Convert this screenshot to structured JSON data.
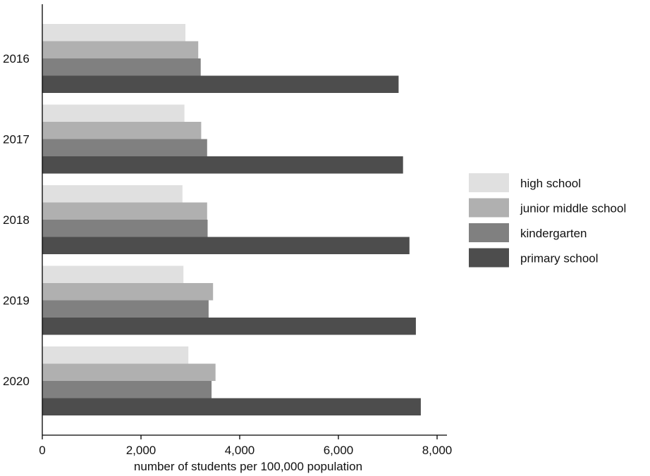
{
  "chart_data": {
    "type": "bar",
    "orientation": "horizontal",
    "categories": [
      "2016",
      "2017",
      "2018",
      "2019",
      "2020"
    ],
    "series": [
      {
        "name": "high school",
        "color": "#e0e0e0",
        "values": [
          2900,
          2880,
          2840,
          2860,
          2960
        ]
      },
      {
        "name": "junior middle school",
        "color": "#b0b0b0",
        "values": [
          3160,
          3220,
          3340,
          3460,
          3510
        ]
      },
      {
        "name": "kindergarten",
        "color": "#808080",
        "values": [
          3210,
          3340,
          3350,
          3370,
          3430
        ]
      },
      {
        "name": "primary school",
        "color": "#4d4d4d",
        "values": [
          7220,
          7310,
          7440,
          7570,
          7670
        ]
      }
    ],
    "title": "",
    "xlabel": "number of students per 100,000 population",
    "ylabel": "",
    "xlim": [
      0,
      8200
    ],
    "xticks": [
      0,
      2000,
      4000,
      6000,
      8000
    ],
    "xtick_labels": [
      "0",
      "2,000",
      "4,000",
      "6,000",
      "8,000"
    ],
    "grid": false,
    "legend_position": "right"
  }
}
